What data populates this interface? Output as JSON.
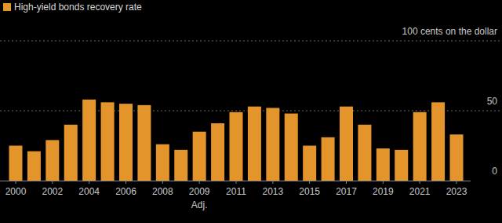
{
  "chart_data": {
    "type": "bar",
    "categories": [
      "2000",
      null,
      "2002",
      null,
      "2004",
      null,
      "2006",
      null,
      "2008",
      null,
      "2009 Adj.",
      null,
      "2011",
      null,
      "2013",
      null,
      "2015",
      null,
      "2017",
      null,
      "2019",
      null,
      "2021",
      null,
      "2023"
    ],
    "series": [
      {
        "name": "High-yield bonds recovery rate",
        "color": "#e3952c",
        "values": [
          25,
          21,
          29,
          40,
          58,
          56,
          55,
          54,
          26,
          22,
          35,
          41,
          49,
          53,
          52,
          48,
          25,
          31,
          53,
          40,
          23,
          22,
          49,
          56,
          33
        ]
      }
    ],
    "ylim": [
      0,
      100
    ],
    "yticks": [
      0,
      50,
      {
        "value": 100,
        "label": "100 cents on the dollar"
      }
    ],
    "grid": true,
    "legend": "top-left"
  }
}
